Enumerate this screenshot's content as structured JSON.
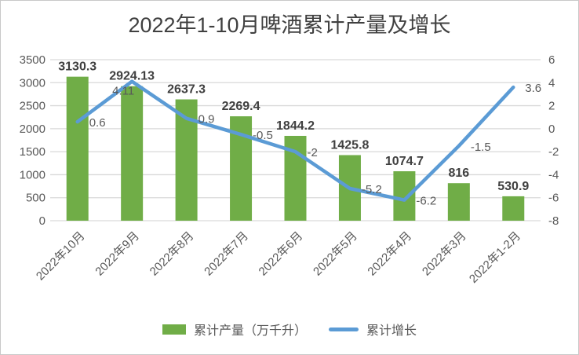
{
  "chart_data": {
    "type": "bar",
    "title": "2022年1-10月啤酒累计产量及增长",
    "categories": [
      "2022年10月",
      "2022年9月",
      "2022年8月",
      "2022年7月",
      "2022年6月",
      "2022年5月",
      "2022年4月",
      "2022年3月",
      "2022年1-2月"
    ],
    "series": [
      {
        "name": "累计产量（万千升）",
        "type": "bar",
        "axis": "left",
        "color": "#70AD47",
        "values": [
          3130.3,
          2924.13,
          2637.3,
          2269.4,
          1844.2,
          1425.8,
          1074.7,
          816,
          530.9
        ],
        "labels": [
          "3130.3",
          "2924.13",
          "2637.3",
          "2269.4",
          "1844.2",
          "1425.8",
          "1074.7",
          "816",
          "530.9"
        ]
      },
      {
        "name": "累计增长",
        "type": "line",
        "axis": "right",
        "color": "#5B9BD5",
        "values": [
          0.6,
          4.11,
          0.9,
          -0.5,
          -2,
          -5.2,
          -6.2,
          -1.5,
          3.6
        ],
        "labels": [
          "0.6",
          "4.11",
          "0.9",
          "-0.5",
          "-2",
          "-5.2",
          "-6.2",
          "-1.5",
          "3.6"
        ],
        "label_positions": [
          "right",
          "below",
          "right",
          "right",
          "right",
          "right",
          "right",
          "right",
          "right"
        ]
      }
    ],
    "left_axis": {
      "min": 0,
      "max": 3500,
      "step": 500,
      "ticks": [
        "3500",
        "3000",
        "2500",
        "2000",
        "1500",
        "1000",
        "500",
        "0"
      ]
    },
    "right_axis": {
      "min": -8,
      "max": 6,
      "step": 2,
      "ticks": [
        "6",
        "4",
        "2",
        "0",
        "-2",
        "-4",
        "-6",
        "-8"
      ]
    },
    "grid": true,
    "legend_position": "bottom",
    "colors": {
      "grid": "#D9D9D9",
      "axis_text": "#595959",
      "bar_label": "#404040",
      "line_label": "#595959",
      "title": "#404040",
      "background": "#FFFFFF",
      "border": "#C9C9C9"
    }
  }
}
